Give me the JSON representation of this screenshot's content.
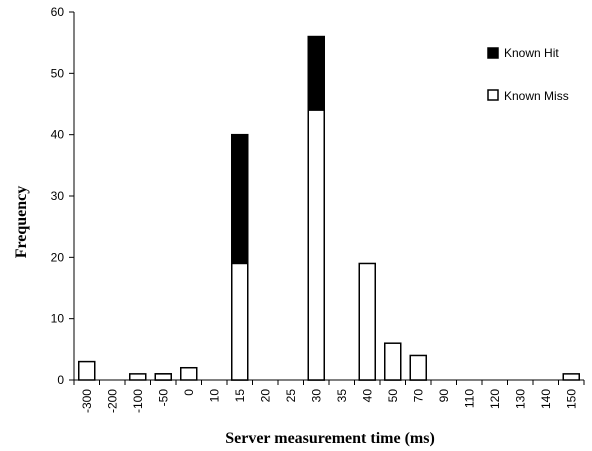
{
  "chart_data": {
    "type": "bar",
    "title": "",
    "xlabel": "Server measurement time (ms)",
    "ylabel": "Frequency",
    "ylim": [
      0,
      60
    ],
    "yticks": [
      0,
      10,
      20,
      30,
      40,
      50,
      60
    ],
    "grid": false,
    "legend_position": "top-right",
    "stacked": false,
    "overlapping": true,
    "categories": [
      "-300",
      "-200",
      "-100",
      "-50",
      "0",
      "10",
      "15",
      "20",
      "25",
      "30",
      "35",
      "40",
      "50",
      "70",
      "90",
      "110",
      "120",
      "130",
      "140",
      "150"
    ],
    "series": [
      {
        "name": "Known Hit",
        "color": "#000000",
        "values": [
          0,
          0,
          0,
          1,
          0,
          0,
          40,
          0,
          0,
          56,
          0,
          1,
          1,
          1,
          0,
          0,
          0,
          0,
          0,
          0
        ]
      },
      {
        "name": "Known Miss",
        "color": "#ffffff",
        "values": [
          3,
          0,
          1,
          1,
          2,
          0,
          19,
          0,
          0,
          44,
          0,
          19,
          6,
          4,
          0,
          0,
          0,
          0,
          0,
          1
        ]
      }
    ]
  }
}
